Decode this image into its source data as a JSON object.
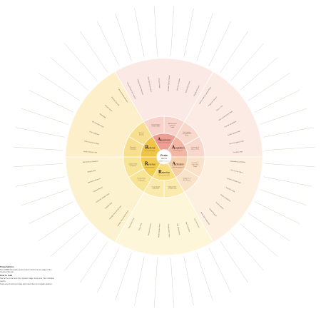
{
  "center": {
    "brand": "Pirate",
    "subtitle": "Metrics",
    "tag": "AARRR framework"
  },
  "stages": [
    {
      "id": "awareness",
      "initial": "A",
      "rest": "wareness",
      "blurb": "How do users find you?",
      "color": "#ef9e93",
      "light": "#f7d3cc",
      "pale": "#fbe9e5",
      "subsegments": [
        "Search Engine & SEO Traffic",
        "Advertisement & Referral Traffic"
      ]
    },
    {
      "id": "acquisition",
      "initial": "A",
      "rest": "cquisition",
      "blurb": "Do users sign up?",
      "color": "#f3b6a4",
      "light": "#f8d8cb",
      "pale": "#fcebe4",
      "subsegments": [
        "Visit Quality & Engagement Depth",
        "Conversion & Sign-up Flow"
      ]
    },
    {
      "id": "activation",
      "initial": "A",
      "rest": "ctivation",
      "blurb": "Great first experience?",
      "color": "#f5cfa9",
      "light": "#f9e2c8",
      "pale": "#fdf0e1",
      "subsegments": [
        "First-Run & Onboarding Steps",
        "Key Action & Aha Moment"
      ]
    },
    {
      "id": "retention",
      "initial": "R",
      "rest": "etention",
      "blurb": "Do users come back?",
      "color": "#f8dd7d",
      "light": "#fbeaae",
      "pale": "#fdf6d9",
      "subsegments": [
        "Repeat Visits & Habit Loops",
        "Churn Signals & Win-back"
      ]
    },
    {
      "id": "revenue",
      "initial": "R",
      "rest": "evenue",
      "blurb": "Can you monetize?",
      "color": "#f1ce52",
      "light": "#f8e495",
      "pale": "#fcf2cf",
      "subsegments": [
        "Pricing, Plans & Upgrades",
        "Lifetime Value & Payback"
      ]
    },
    {
      "id": "referral",
      "initial": "R",
      "rest": "eferral",
      "blurb": "Do users tell others?",
      "color": "#f0c447",
      "light": "#f7df8f",
      "pale": "#fcefc9",
      "subsegments": [
        "Sharing & Invitations",
        "Virality & K-factor"
      ]
    }
  ],
  "metric_labels": [
    "Unique Visitors per Channel",
    "Organic Search Sessions",
    "Paid Click-through Rate",
    "Cost per Visitor",
    "Branded Search Volume",
    "Referring Domains",
    "Social Impressions",
    "Display Ad Reach",
    "Bounce Rate by Landing Page",
    "Pages per Session",
    "Time on Site",
    "Sign-up Conversion Rate",
    "Cost per Acquisition",
    "Email Capture Rate",
    "Form Completion Rate",
    "Trial Start Rate",
    "Onboarding Completion",
    "Time to First Value",
    "Feature Adoption Rate",
    "Activation Rate",
    "Profile Completion",
    "First Key Action",
    "Tutorial Drop-off",
    "Setup Step Completion",
    "Day 1 Retention",
    "Day 7 Retention",
    "Day 30 Retention",
    "Weekly Active Users",
    "Monthly Active Users",
    "Session Frequency",
    "Churn Rate",
    "Reactivation Rate",
    "Monthly Recurring Revenue",
    "Average Revenue per User",
    "Upgrade Rate",
    "Customer Lifetime Value",
    "Payback Period",
    "Expansion Revenue",
    "Refund Rate",
    "Net Revenue Retention",
    "Invites Sent per User",
    "Invite Acceptance Rate",
    "Viral Coefficient",
    "Net Promoter Score",
    "Share Rate",
    "Review Count",
    "Referral Sign-ups",
    "Word of Mouth Mentions"
  ],
  "legend": {
    "title": "Pirate Metrics",
    "intro": "The AARRR framework groups product metrics into six stages of the customer lifecycle.",
    "section2_title": "How to read",
    "how_to_read": "Start at the center and move outward: stage, focus area, then individual metrics.",
    "notes": "Track a few metrics per stage and review them on a regular cadence."
  }
}
